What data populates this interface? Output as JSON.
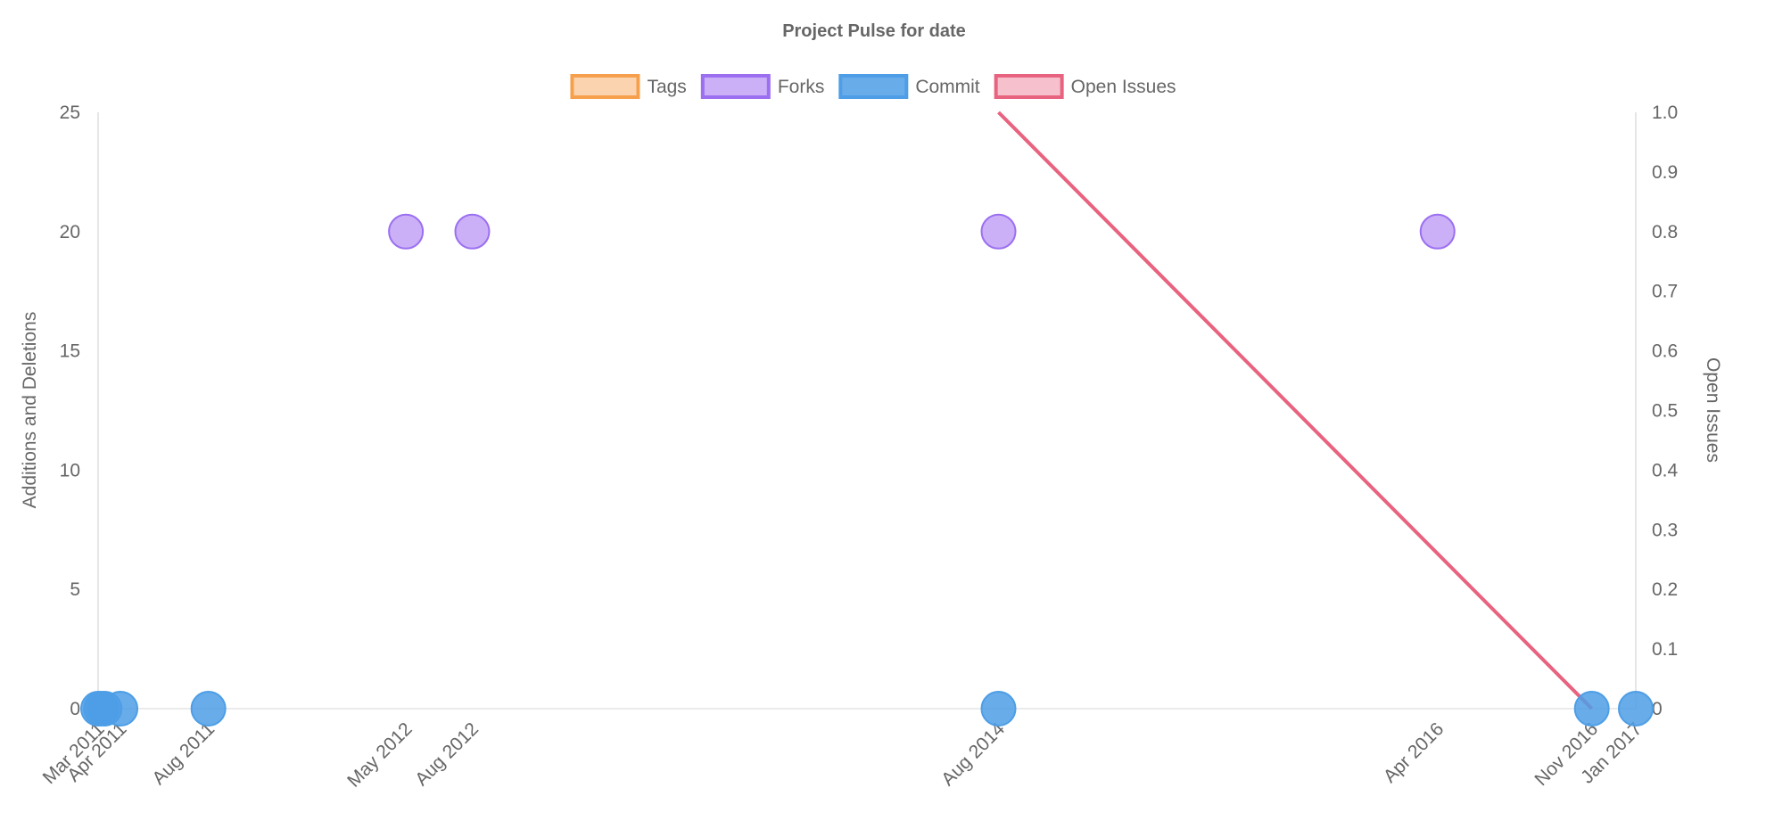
{
  "chart_data": {
    "type": "scatter",
    "title": "Project Pulse for date",
    "legend_position": "top",
    "ylabel_left": "Additions and Deletions",
    "ylabel_right": "Open Issues",
    "ylim_left": [
      0,
      25
    ],
    "ylim_right": [
      0,
      1
    ],
    "yticks_left": [
      "0",
      "5",
      "10",
      "15",
      "20",
      "25"
    ],
    "yticks_right": [
      "0",
      "0.1",
      "0.2",
      "0.3",
      "0.4",
      "0.5",
      "0.6",
      "0.7",
      "0.8",
      "0.9",
      "1.0"
    ],
    "x_range": [
      "2011-03-01",
      "2017-01-01"
    ],
    "x_ticks": [
      {
        "date": "2011-03-01",
        "label": "Mar 2011"
      },
      {
        "date": "2011-04-01",
        "label": "Apr 2011"
      },
      {
        "date": "2011-08-01",
        "label": "Aug 2011"
      },
      {
        "date": "2012-05-01",
        "label": "May 2012"
      },
      {
        "date": "2012-08-01",
        "label": "Aug 2012"
      },
      {
        "date": "2014-08-01",
        "label": "Aug 2014"
      },
      {
        "date": "2016-04-01",
        "label": "Apr 2016"
      },
      {
        "date": "2016-11-01",
        "label": "Nov 2016"
      },
      {
        "date": "2017-01-01",
        "label": "Jan 2017"
      }
    ],
    "grid": false,
    "series": [
      {
        "name": "Tags",
        "axis": "left",
        "kind": "scatter",
        "color": "#f6a04d",
        "fill": "rgba(246,160,77,0.45)",
        "points": []
      },
      {
        "name": "Forks",
        "axis": "left",
        "kind": "scatter",
        "color": "#9b6ff0",
        "fill": "rgba(185,150,245,0.75)",
        "points": [
          {
            "x": "2012-05-01",
            "y": 20
          },
          {
            "x": "2012-08-01",
            "y": 20
          },
          {
            "x": "2014-08-01",
            "y": 20
          },
          {
            "x": "2016-04-01",
            "y": 20
          }
        ]
      },
      {
        "name": "Commit",
        "axis": "left",
        "kind": "scatter",
        "color": "#4d9ee6",
        "fill": "rgba(77,158,230,0.85)",
        "points": [
          {
            "x": "2011-03-01",
            "y": 0
          },
          {
            "x": "2011-03-05",
            "y": 0
          },
          {
            "x": "2011-03-10",
            "y": 0
          },
          {
            "x": "2011-04-01",
            "y": 0
          },
          {
            "x": "2011-08-01",
            "y": 0
          },
          {
            "x": "2014-08-01",
            "y": 0
          },
          {
            "x": "2016-11-01",
            "y": 0
          },
          {
            "x": "2017-01-01",
            "y": 0
          }
        ]
      },
      {
        "name": "Open Issues",
        "axis": "right",
        "kind": "line",
        "color": "#e8637f",
        "fill": "rgba(240,150,170,0.6)",
        "points": [
          {
            "x": "2014-08-01",
            "y": 1.0
          },
          {
            "x": "2016-11-01",
            "y": 0
          }
        ]
      }
    ]
  }
}
